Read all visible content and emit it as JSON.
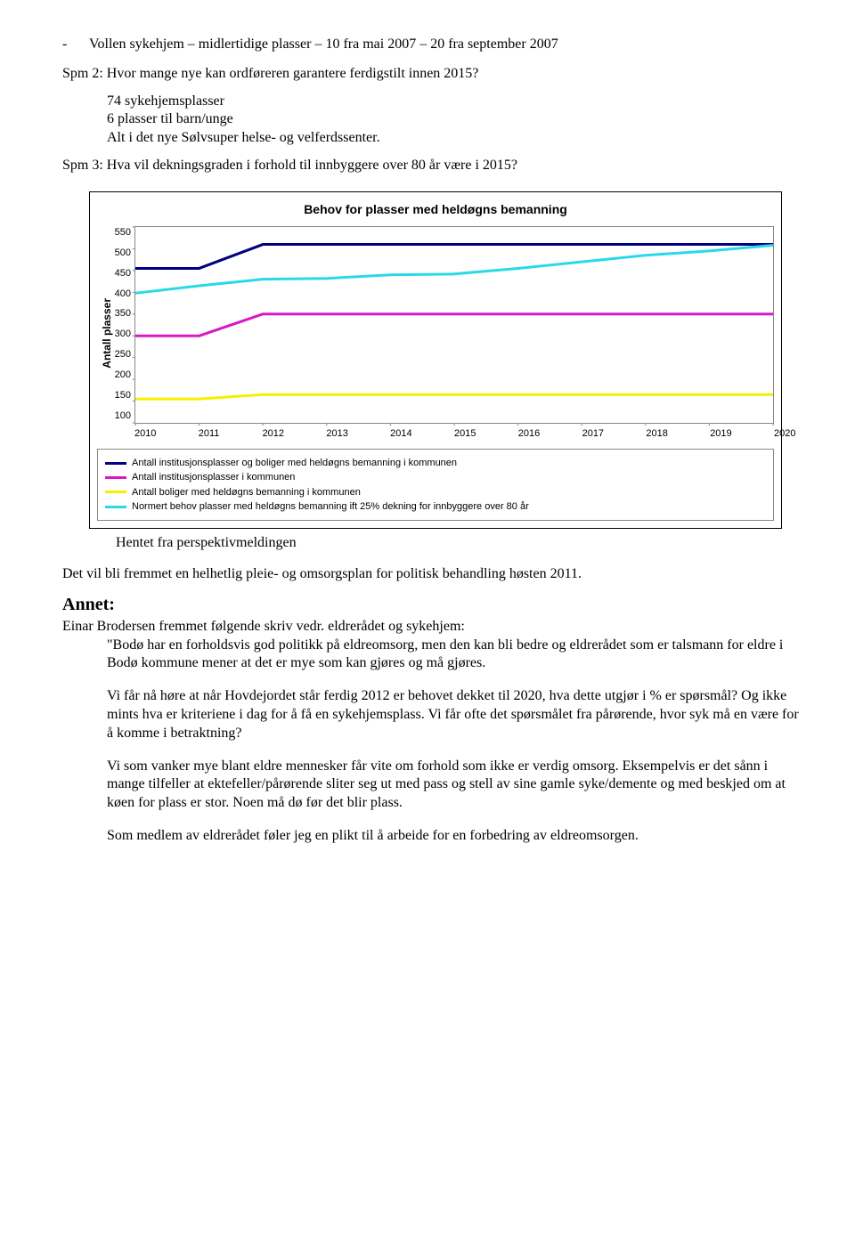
{
  "bullet": {
    "dash": "-",
    "text": "Vollen sykehjem – midlertidige plasser – 10 fra mai 2007 – 20 fra september 2007"
  },
  "spm2": "Spm 2: Hvor mange nye kan ordføreren garantere ferdigstilt innen 2015?",
  "indent": {
    "l1": "74 sykehjemsplasser",
    "l2": "6 plasser til barn/unge",
    "l3": "Alt i det nye Sølvsuper helse- og velferdssenter."
  },
  "spm3": "Spm 3: Hva vil dekningsgraden i forhold til innbyggere over 80 år være i 2015?",
  "chart": {
    "title": "Behov for plasser med heldøgns bemanning",
    "ylabel": "Antall plasser",
    "ymin": 100,
    "ymax": 550,
    "ystep": 50,
    "yticks": [
      "550",
      "500",
      "450",
      "400",
      "350",
      "300",
      "250",
      "200",
      "150",
      "100"
    ],
    "xticks": [
      "2010",
      "2011",
      "2012",
      "2013",
      "2014",
      "2015",
      "2016",
      "2017",
      "2018",
      "2019",
      "2020"
    ],
    "series": [
      {
        "label": "Antall institusjonsplasser og boliger med heldøgns bemanning i kommunen",
        "color": "#000080",
        "values": [
          455,
          455,
          510,
          510,
          510,
          510,
          510,
          510,
          510,
          510,
          510
        ]
      },
      {
        "label": "Antall institusjonsplasser i kommunen",
        "color": "#d818c8",
        "values": [
          300,
          300,
          350,
          350,
          350,
          350,
          350,
          350,
          350,
          350,
          350
        ]
      },
      {
        "label": "Antall boliger med heldøgns bemanning i kommunen",
        "color": "#f6f000",
        "values": [
          155,
          155,
          165,
          165,
          165,
          165,
          165,
          165,
          165,
          165,
          165
        ]
      },
      {
        "label": "Normert behov plasser med heldøgns bemanning ift 25% dekning for innbyggere over 80 år",
        "color": "#29d9e8",
        "values": [
          398,
          415,
          430,
          432,
          440,
          442,
          455,
          470,
          485,
          495,
          508
        ]
      }
    ]
  },
  "caption": "Hentet fra perspektivmeldingen",
  "para_after": "Det vil bli fremmet en helhetlig pleie- og omsorgsplan for politisk behandling høsten 2011.",
  "annet_heading": "Annet:",
  "annet_intro": "Einar Brodersen fremmet følgende skriv vedr. eldrerådet og sykehjem:",
  "quote": {
    "p1": "\"Bodø har en forholdsvis god politikk på eldreomsorg, men den kan bli bedre og eldrerådet som er talsmann for eldre i Bodø kommune mener at det er mye som kan gjøres og må gjøres.",
    "p2": "Vi får nå høre at når Hovdejordet står ferdig 2012 er behovet dekket til 2020, hva dette utgjør i % er spørsmål? Og ikke mints hva er kriteriene i dag for å få en sykehjemsplass. Vi får ofte det spørsmålet fra pårørende, hvor syk må en være for å komme i betraktning?",
    "p3": "Vi som vanker mye blant eldre mennesker får vite om forhold som ikke er verdig omsorg. Eksempelvis er det sånn i mange tilfeller at ektefeller/pårørende sliter seg ut med pass og stell av sine gamle syke/demente og med beskjed om at køen for plass er stor. Noen må dø før det blir plass.",
    "p4": "Som medlem av eldrerådet føler jeg en plikt til å arbeide for en forbedring av eldreomsorgen."
  }
}
